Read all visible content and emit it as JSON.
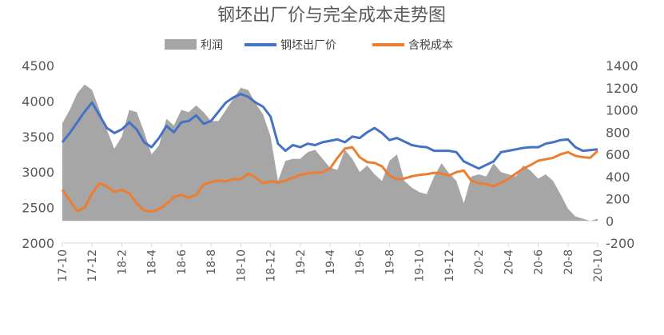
{
  "chart_data": {
    "type": "area+line",
    "title": "钢坯出厂价与完全成本走势图",
    "legend": [
      "利润",
      "钢坯出厂价",
      "含税成本"
    ],
    "colors": {
      "profit": "#A6A6A6",
      "price": "#4472C4",
      "cost": "#ED7D31"
    },
    "y_left": {
      "min": 2000,
      "max": 4500,
      "ticks": [
        "2000",
        "2500",
        "3000",
        "3500",
        "4000",
        "4500"
      ]
    },
    "y_right": {
      "min": -200,
      "max": 1400,
      "ticks": [
        "-200",
        "0",
        "200",
        "400",
        "600",
        "800",
        "1000",
        "1200",
        "1400"
      ]
    },
    "x_ticks": [
      "17-10",
      "17-12",
      "18-2",
      "18-4",
      "18-6",
      "18-8",
      "18-10",
      "18-12",
      "19-2",
      "19-4",
      "19-6",
      "19-8",
      "19-10",
      "19-12",
      "20-2",
      "20-4",
      "20-6",
      "20-8",
      "20-10"
    ],
    "x": [
      0,
      0.25,
      0.5,
      0.75,
      1,
      1.25,
      1.5,
      1.75,
      2,
      2.25,
      2.5,
      2.75,
      3,
      3.25,
      3.5,
      3.75,
      4,
      4.25,
      4.5,
      4.75,
      5,
      5.25,
      5.5,
      5.75,
      6,
      6.25,
      6.5,
      6.75,
      7,
      7.25,
      7.5,
      7.75,
      8,
      8.25,
      8.5,
      8.75,
      9,
      9.25,
      9.5,
      9.75,
      10,
      10.25,
      10.5,
      10.75,
      11,
      11.25,
      11.5,
      11.75,
      12,
      12.25,
      12.5,
      12.75,
      13,
      13.25,
      13.5,
      13.75,
      14,
      14.25,
      14.5,
      14.75,
      15,
      15.25,
      15.5,
      15.75,
      16,
      16.25,
      16.5,
      16.75,
      17,
      17.25,
      17.5,
      17.75,
      18
    ],
    "series": [
      {
        "name": "利润",
        "axis": "right",
        "type": "area",
        "values": [
          880,
          1000,
          1150,
          1230,
          1180,
          1000,
          820,
          650,
          760,
          1000,
          980,
          800,
          600,
          680,
          920,
          860,
          1000,
          980,
          1040,
          980,
          900,
          900,
          1000,
          1100,
          1200,
          1180,
          1060,
          960,
          760,
          360,
          540,
          560,
          560,
          620,
          640,
          560,
          480,
          460,
          640,
          560,
          440,
          500,
          420,
          360,
          540,
          600,
          360,
          300,
          260,
          240,
          400,
          520,
          430,
          360,
          160,
          400,
          420,
          400,
          520,
          440,
          420,
          400,
          500,
          450,
          380,
          420,
          360,
          240,
          110,
          40,
          20,
          0,
          20
        ]
      },
      {
        "name": "钢坯出厂价",
        "axis": "left",
        "type": "line",
        "values": [
          3420,
          3550,
          3700,
          3850,
          3980,
          3800,
          3620,
          3550,
          3600,
          3700,
          3600,
          3420,
          3350,
          3480,
          3650,
          3560,
          3700,
          3720,
          3800,
          3680,
          3720,
          3850,
          3980,
          4050,
          4100,
          4060,
          3980,
          3920,
          3780,
          3400,
          3300,
          3380,
          3350,
          3400,
          3380,
          3420,
          3440,
          3460,
          3420,
          3500,
          3480,
          3560,
          3620,
          3550,
          3450,
          3480,
          3430,
          3380,
          3360,
          3350,
          3300,
          3300,
          3300,
          3280,
          3150,
          3100,
          3050,
          3100,
          3150,
          3280,
          3300,
          3320,
          3340,
          3350,
          3350,
          3400,
          3420,
          3450,
          3460,
          3350,
          3300,
          3310,
          3320
        ]
      },
      {
        "name": "含税成本",
        "axis": "left",
        "type": "line",
        "values": [
          2750,
          2600,
          2450,
          2500,
          2700,
          2840,
          2800,
          2720,
          2750,
          2700,
          2560,
          2460,
          2440,
          2480,
          2550,
          2650,
          2680,
          2640,
          2680,
          2820,
          2860,
          2880,
          2870,
          2900,
          2900,
          2980,
          2920,
          2840,
          2870,
          2850,
          2880,
          2920,
          2960,
          2980,
          2990,
          3000,
          3050,
          3200,
          3330,
          3350,
          3210,
          3140,
          3130,
          3080,
          2950,
          2900,
          2910,
          2940,
          2960,
          2970,
          2990,
          2980,
          2950,
          3000,
          3020,
          2880,
          2840,
          2830,
          2800,
          2850,
          2900,
          2980,
          3050,
          3100,
          3160,
          3180,
          3200,
          3250,
          3280,
          3230,
          3210,
          3200,
          3300
        ]
      }
    ]
  }
}
